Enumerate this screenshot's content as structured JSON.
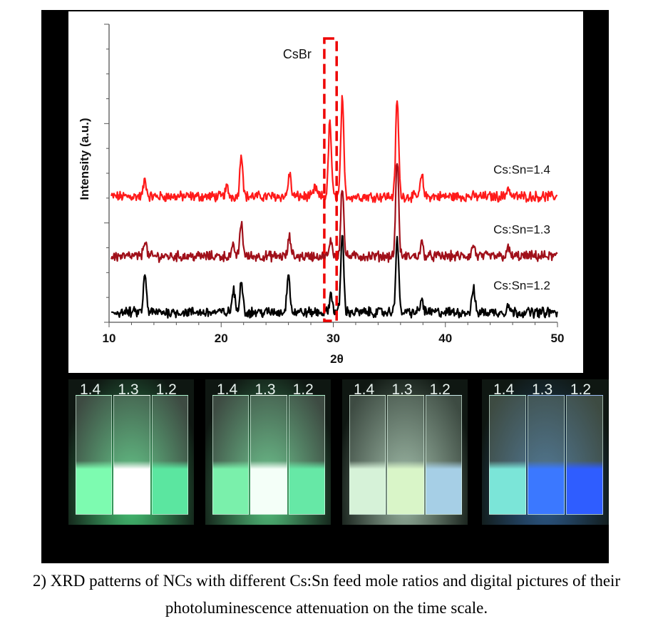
{
  "chart_data": {
    "type": "line",
    "xlabel": "2θ",
    "ylabel": "Intensity (a.u.)",
    "xlim": [
      10,
      50
    ],
    "x_ticks": [
      "10",
      "20",
      "30",
      "40",
      "50"
    ],
    "y_tick_labels": "none",
    "grid": false,
    "legend": "labels placed at right above each trace",
    "annotation": {
      "text": "CsBr",
      "box_2theta": [
        29.2,
        30.3
      ],
      "style": "red dashed rectangle"
    },
    "series": [
      {
        "name": "Cs:Sn=1.4",
        "color": "#ff1a1a",
        "baseline": 0.62,
        "peaks_2theta": [
          13.2,
          20.5,
          21.8,
          26.1,
          28.4,
          29.7,
          30.8,
          35.7,
          37.9,
          45.6
        ],
        "peaks_height": [
          0.09,
          0.05,
          0.23,
          0.12,
          0.05,
          0.4,
          0.52,
          0.52,
          0.11,
          0.05
        ]
      },
      {
        "name": "Cs:Sn=1.3",
        "color": "#a0101a",
        "baseline": 0.3,
        "peaks_2theta": [
          13.2,
          21.1,
          21.8,
          26.1,
          29.8,
          30.8,
          35.7,
          37.9,
          42.5,
          45.6
        ],
        "peaks_height": [
          0.09,
          0.05,
          0.18,
          0.1,
          0.08,
          0.38,
          0.52,
          0.07,
          0.06,
          0.04
        ]
      },
      {
        "name": "Cs:Sn=1.2",
        "color": "#000000",
        "baseline": 0.0,
        "peaks_2theta": [
          13.2,
          21.1,
          21.8,
          26.0,
          29.8,
          30.8,
          35.7,
          37.9,
          42.5,
          45.6
        ],
        "peaks_height": [
          0.2,
          0.12,
          0.18,
          0.22,
          0.1,
          0.42,
          0.4,
          0.07,
          0.13,
          0.04
        ]
      }
    ]
  },
  "photos": [
    {
      "labels": [
        "1.4",
        "1.3",
        "1.2"
      ],
      "tint": "#48c878",
      "glow": [
        "#7dfbb0",
        "#ffffff",
        "#5be6a0"
      ]
    },
    {
      "labels": [
        "1.4",
        "1.3",
        "1.2"
      ],
      "tint": "#55c47f",
      "glow": [
        "#7af0ab",
        "#f4fff8",
        "#66e8a6"
      ]
    },
    {
      "labels": [
        "1.4",
        "1.3",
        "1.2"
      ],
      "tint": "#9bb7a3",
      "glow": [
        "#d6f2d8",
        "#d9f5c8",
        "#a6cfe6"
      ]
    },
    {
      "labels": [
        "1.4",
        "1.3",
        "1.2"
      ],
      "tint": "#2d5a8c",
      "glow": [
        "#7be5d8",
        "#3b78ff",
        "#2f5dff"
      ]
    }
  ],
  "caption": {
    "line1": "2) XRD patterns of NCs with different Cs:Sn feed mole ratios and digital pictures of their",
    "line2": "photoluminescence attenuation on the time scale."
  }
}
